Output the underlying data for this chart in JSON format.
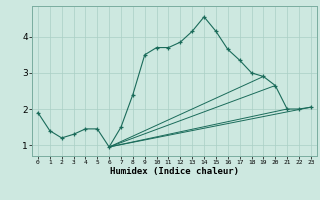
{
  "title": "",
  "xlabel": "Humidex (Indice chaleur)",
  "ylabel": "",
  "background_color": "#cde8e0",
  "grid_color": "#aacfc5",
  "line_color": "#1a6b5a",
  "xlim": [
    -0.5,
    23.5
  ],
  "ylim": [
    0.7,
    4.85
  ],
  "yticks": [
    1,
    2,
    3,
    4
  ],
  "xticks": [
    0,
    1,
    2,
    3,
    4,
    5,
    6,
    7,
    8,
    9,
    10,
    11,
    12,
    13,
    14,
    15,
    16,
    17,
    18,
    19,
    20,
    21,
    22,
    23
  ],
  "series1_x": [
    0,
    1,
    2,
    3,
    4,
    5,
    6,
    7,
    8,
    9,
    10,
    11,
    12,
    13,
    14,
    15,
    16,
    17,
    18,
    19,
    20,
    21,
    22,
    23
  ],
  "series1_y": [
    1.9,
    1.4,
    1.2,
    1.3,
    1.45,
    1.45,
    0.95,
    1.5,
    2.4,
    3.5,
    3.7,
    3.7,
    3.85,
    4.15,
    4.55,
    4.15,
    3.65,
    3.35,
    3.0,
    2.9,
    2.65,
    2.0,
    2.0,
    2.05
  ],
  "series2_x": [
    6,
    23
  ],
  "series2_y": [
    0.95,
    2.05
  ],
  "series3_x": [
    6,
    19
  ],
  "series3_y": [
    0.95,
    2.9
  ],
  "series4_x": [
    6,
    20
  ],
  "series4_y": [
    0.95,
    2.65
  ],
  "series5_x": [
    6,
    21
  ],
  "series5_y": [
    0.95,
    2.0
  ]
}
